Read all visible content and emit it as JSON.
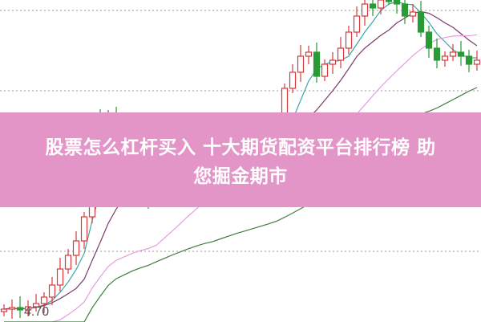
{
  "banner": {
    "title_line1": "股票怎么杠杆买入 十大期货配资平台排行榜  助",
    "title_line2": "您掘金期市",
    "color": "#e495c8"
  },
  "chart_data": {
    "type": "candlestick",
    "price_label": "4.70",
    "ylim": [
      4.59,
      8.6
    ],
    "grid": "dotted horizontal",
    "up_color": "#d9393b",
    "down_color": "#2a9a34",
    "closes": [
      4.75,
      4.77,
      4.74,
      4.78,
      4.82,
      4.9,
      5.05,
      5.25,
      5.42,
      5.6,
      5.9,
      7.1,
      7.0,
      7.15,
      6.6,
      6.2,
      6.3,
      6.15,
      6.1,
      6.45,
      6.4,
      6.5,
      6.45,
      6.55,
      6.5,
      6.4,
      6.3,
      6.6,
      6.65,
      6.7,
      6.6,
      6.65,
      6.7,
      6.75,
      6.9,
      7.5,
      7.7,
      7.9,
      7.95,
      7.65,
      7.8,
      7.85,
      8.0,
      8.2,
      8.4,
      8.55,
      8.5,
      8.7,
      8.6,
      8.55,
      8.4,
      8.45,
      8.2,
      8.0,
      7.85,
      7.9,
      7.95,
      7.9,
      7.8,
      7.85
    ],
    "moving_averages": [
      {
        "period": 5,
        "color": "#3aa6a6"
      },
      {
        "period": 10,
        "color": "#7a3b6e"
      },
      {
        "period": 20,
        "color": "#e79be0"
      },
      {
        "period": 40,
        "color": "#3d7d3d"
      }
    ]
  }
}
